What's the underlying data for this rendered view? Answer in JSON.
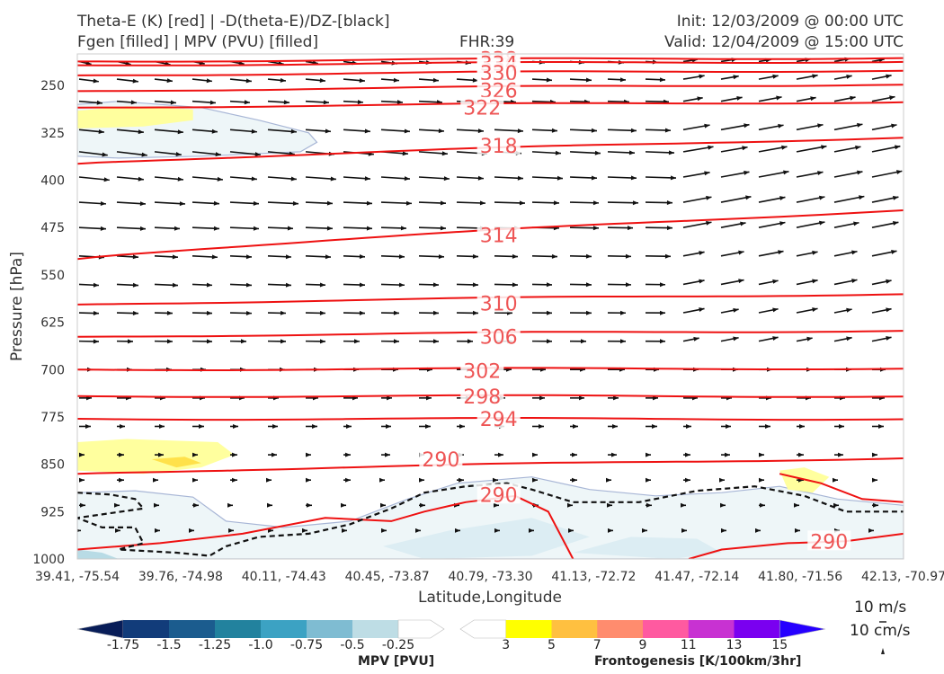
{
  "header": {
    "title_line1": "Theta-E (K) [red] | -D(theta-E)/DZ-[black]",
    "title_line2": "Fgen [filled] | MPV (PVU) [filled]",
    "fhr": "FHR:39",
    "init": "Init: 12/03/2009 @ 00:00 UTC",
    "valid": "Valid: 12/04/2009 @ 15:00 UTC"
  },
  "chart_data": {
    "type": "cross-section",
    "xlabel": "Latitude,Longitude",
    "ylabel": "Pressure [hPa]",
    "x_ticks": [
      "39.41, -75.54",
      "39.76, -74.98",
      "40.11, -74.43",
      "40.45, -73.87",
      "40.79, -73.30",
      "41.13, -72.72",
      "41.47, -72.14",
      "41.80, -71.56",
      "42.13, -70.97"
    ],
    "y_ticks": [
      250,
      325,
      400,
      475,
      550,
      625,
      700,
      775,
      850,
      925,
      1000
    ],
    "ylim": [
      1000,
      200
    ],
    "theta_e_labels": [
      {
        "value": "338",
        "x_frac": 0.51,
        "p": 208
      },
      {
        "value": "334",
        "x_frac": 0.51,
        "p": 215
      },
      {
        "value": "330",
        "x_frac": 0.51,
        "p": 230
      },
      {
        "value": "326",
        "x_frac": 0.51,
        "p": 258
      },
      {
        "value": "322",
        "x_frac": 0.49,
        "p": 285
      },
      {
        "value": "318",
        "x_frac": 0.51,
        "p": 345
      },
      {
        "value": "314",
        "x_frac": 0.51,
        "p": 487
      },
      {
        "value": "310",
        "x_frac": 0.51,
        "p": 595
      },
      {
        "value": "306",
        "x_frac": 0.51,
        "p": 648
      },
      {
        "value": "302",
        "x_frac": 0.49,
        "p": 702
      },
      {
        "value": "298",
        "x_frac": 0.49,
        "p": 742
      },
      {
        "value": "294",
        "x_frac": 0.51,
        "p": 778
      },
      {
        "value": "290",
        "x_frac": 0.44,
        "p": 842
      },
      {
        "value": "290",
        "x_frac": 0.51,
        "p": 898
      },
      {
        "value": "290",
        "x_frac": 0.91,
        "p": 972
      }
    ],
    "mpv_colorbar": {
      "title": "MPV [PVU]",
      "labels": [
        "-1.75",
        "-1.5",
        "-1.25",
        "-1.0",
        "-0.75",
        "-0.5",
        "-0.25"
      ],
      "colors": [
        "#081d58",
        "#123c7a",
        "#1b5c8e",
        "#22829e",
        "#3ca2c3",
        "#7fbcd2",
        "#bedde5",
        "#ffffff"
      ]
    },
    "fgen_colorbar": {
      "title": "Frontogenesis [K/100km/3hr]",
      "labels": [
        "3",
        "5",
        "7",
        "9",
        "11",
        "13",
        "15"
      ],
      "colors": [
        "#ffffff",
        "#ffff00",
        "#ffc040",
        "#ff8c6e",
        "#ff5aa0",
        "#c832d2",
        "#7a00f0",
        "#2600ff"
      ]
    },
    "wind_key": {
      "label1": "10 m/s",
      "label2": "10 cm/s"
    }
  }
}
